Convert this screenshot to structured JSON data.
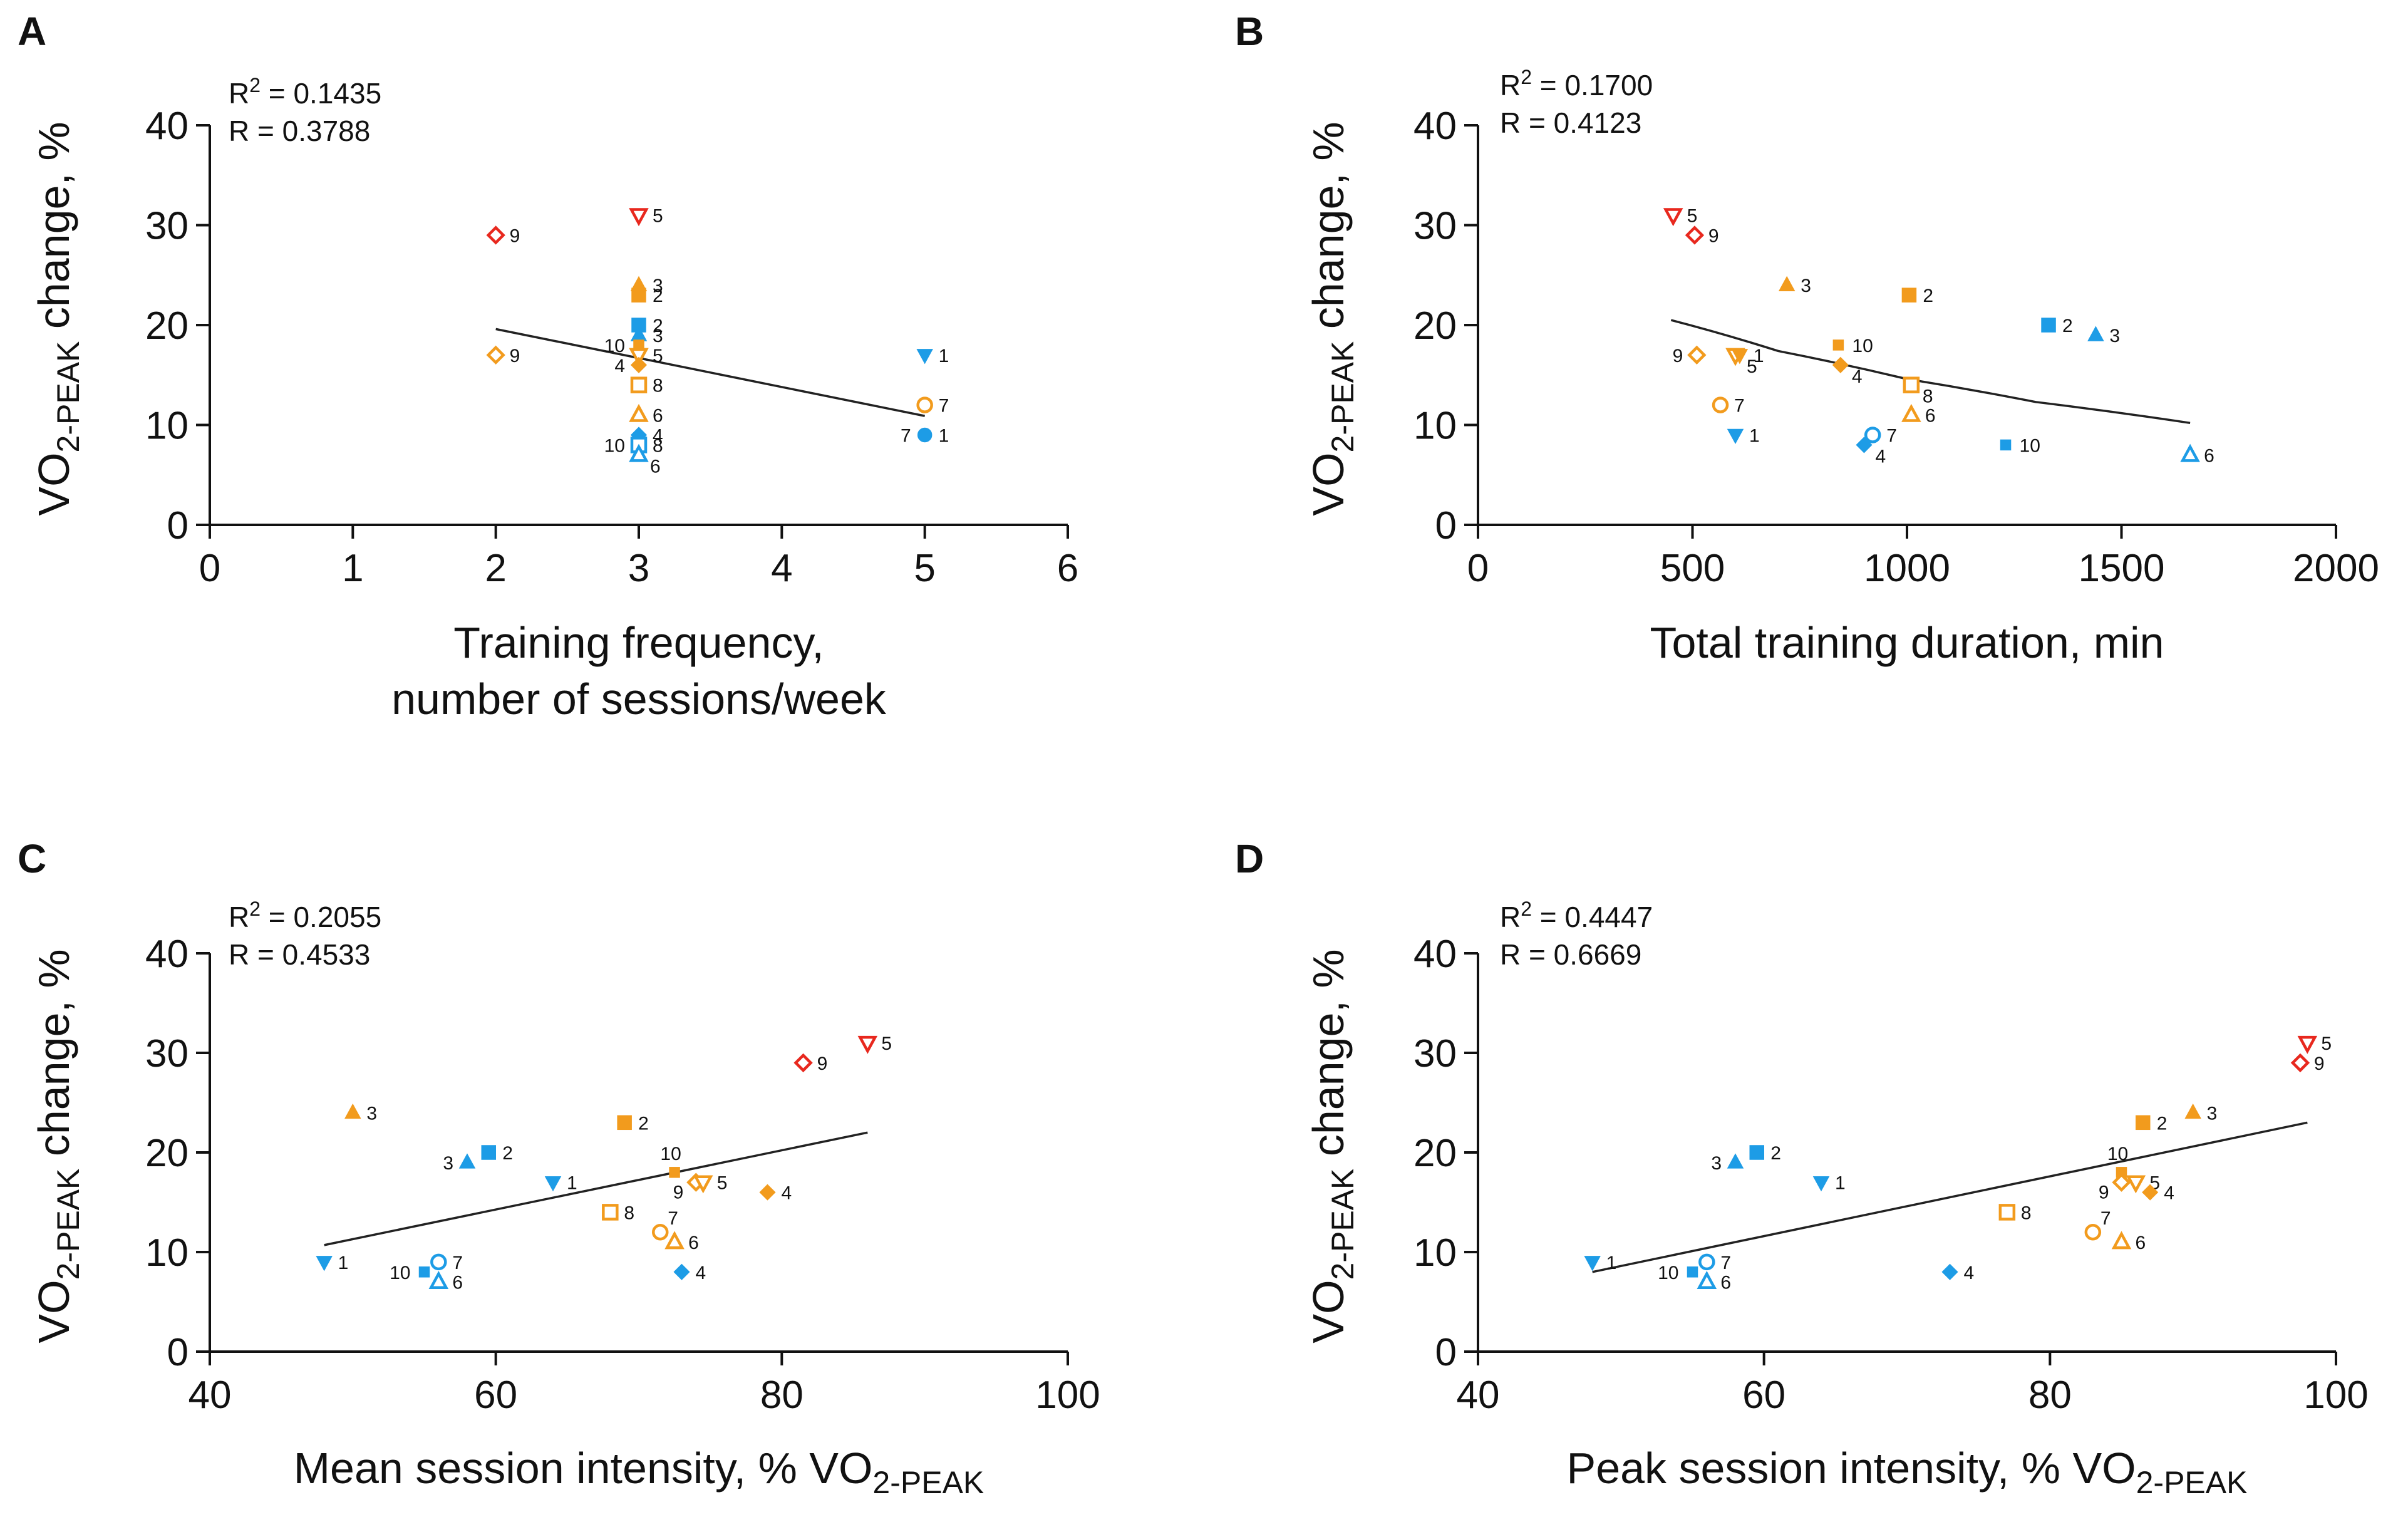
{
  "colors": {
    "orange": "#f29b1d",
    "blue": "#1d9ce6",
    "red": "#e8281e",
    "axis": "#111111"
  },
  "chart_data": [
    {
      "id": "A",
      "type": "scatter",
      "panel_label": "A",
      "xlabel_lines": [
        "Training frequency,",
        "number of sessions/week"
      ],
      "ylabel_main": "VO",
      "ylabel_sub": "2-PEAK",
      "ylabel_tail": " change, %",
      "xlim": [
        0,
        6
      ],
      "ylim": [
        0,
        40
      ],
      "xticks": [
        0,
        1,
        2,
        3,
        4,
        5,
        6
      ],
      "yticks": [
        0,
        10,
        20,
        30,
        40
      ],
      "stats": {
        "r2_prefix": "R",
        "r2_sup": "2",
        "r2_value": " = 0.1435",
        "r": "R = 0.3788"
      },
      "fit": {
        "kind": "linear",
        "x": [
          2,
          5
        ],
        "y": [
          19.6,
          10.9
        ]
      },
      "points": [
        {
          "x": 2,
          "y": 29,
          "label": "9",
          "shape": "diamond",
          "fill": "open",
          "color": "red",
          "label_side": "right"
        },
        {
          "x": 2,
          "y": 17,
          "label": "9",
          "shape": "diamond",
          "fill": "open",
          "color": "orange",
          "label_side": "right"
        },
        {
          "x": 3,
          "y": 31,
          "label": "5",
          "shape": "tri-down",
          "fill": "open",
          "color": "red",
          "label_side": "right"
        },
        {
          "x": 3,
          "y": 24,
          "label": "3",
          "shape": "tri-up",
          "fill": "filled",
          "color": "orange",
          "label_side": "right"
        },
        {
          "x": 3,
          "y": 23,
          "label": "2",
          "shape": "square",
          "fill": "filled",
          "color": "orange",
          "label_side": "right"
        },
        {
          "x": 3,
          "y": 20,
          "label": "2",
          "shape": "square",
          "fill": "filled",
          "color": "blue",
          "label_side": "right"
        },
        {
          "x": 3,
          "y": 19,
          "label": "3",
          "shape": "tri-up",
          "fill": "filled",
          "color": "blue",
          "label_side": "right"
        },
        {
          "x": 3,
          "y": 18,
          "label": "10",
          "shape": "square-small",
          "fill": "filled",
          "color": "orange",
          "label_side": "left"
        },
        {
          "x": 3,
          "y": 17,
          "label": "5",
          "shape": "tri-down",
          "fill": "open",
          "color": "orange",
          "label_side": "right"
        },
        {
          "x": 3,
          "y": 16,
          "label": "4",
          "shape": "diamond",
          "fill": "filled",
          "color": "orange",
          "label_side": "left"
        },
        {
          "x": 3,
          "y": 14,
          "label": "8",
          "shape": "square",
          "fill": "open",
          "color": "orange",
          "label_side": "right"
        },
        {
          "x": 3,
          "y": 11,
          "label": "6",
          "shape": "tri-up",
          "fill": "open",
          "color": "orange",
          "label_side": "right"
        },
        {
          "x": 3,
          "y": 9,
          "label": "4",
          "shape": "diamond",
          "fill": "filled",
          "color": "blue",
          "label_side": "right"
        },
        {
          "x": 3,
          "y": 8,
          "label": "10",
          "shape": "square",
          "fill": "filled",
          "color": "blue",
          "label_side": "left"
        },
        {
          "x": 3,
          "y": 8,
          "label": "8",
          "shape": "square",
          "fill": "open",
          "color": "blue",
          "label_side": "right"
        },
        {
          "x": 3,
          "y": 7,
          "label": "6",
          "shape": "tri-up",
          "fill": "open",
          "color": "blue",
          "label_side": "right-below"
        },
        {
          "x": 5,
          "y": 17,
          "label": "1",
          "shape": "tri-down",
          "fill": "filled",
          "color": "blue",
          "label_side": "right"
        },
        {
          "x": 5,
          "y": 12,
          "label": "7",
          "shape": "circle",
          "fill": "open",
          "color": "orange",
          "label_side": "right"
        },
        {
          "x": 5,
          "y": 9,
          "label": "1",
          "shape": "circle",
          "fill": "filled",
          "color": "blue",
          "label_side": "right"
        },
        {
          "x": 5,
          "y": 9,
          "label": "7",
          "shape": "none",
          "fill": "open",
          "color": "blue",
          "label_side": "left"
        }
      ]
    },
    {
      "id": "B",
      "type": "scatter",
      "panel_label": "B",
      "xlabel_lines": [
        "Total training duration, min"
      ],
      "ylabel_main": "VO",
      "ylabel_sub": "2-PEAK",
      "ylabel_tail": " change, %",
      "xlim": [
        0,
        2000
      ],
      "ylim": [
        0,
        40
      ],
      "xticks": [
        0,
        500,
        1000,
        1500,
        2000
      ],
      "yticks": [
        0,
        10,
        20,
        30,
        40
      ],
      "stats": {
        "r2_prefix": "R",
        "r2_sup": "2",
        "r2_value": " = 0.1700",
        "r": "R = 0.4123"
      },
      "fit": {
        "kind": "curve",
        "x": [
          450,
          700,
          1000,
          1300,
          1660
        ],
        "y": [
          20.5,
          17.4,
          14.6,
          12.3,
          10.2
        ]
      },
      "points": [
        {
          "x": 455,
          "y": 31,
          "label": "5",
          "shape": "tri-down",
          "fill": "open",
          "color": "red",
          "label_side": "right"
        },
        {
          "x": 505,
          "y": 29,
          "label": "9",
          "shape": "diamond",
          "fill": "open",
          "color": "red",
          "label_side": "right"
        },
        {
          "x": 720,
          "y": 24,
          "label": "3",
          "shape": "tri-up",
          "fill": "filled",
          "color": "orange",
          "label_side": "right"
        },
        {
          "x": 1005,
          "y": 23,
          "label": "2",
          "shape": "square",
          "fill": "filled",
          "color": "orange",
          "label_side": "right"
        },
        {
          "x": 1330,
          "y": 20,
          "label": "2",
          "shape": "square",
          "fill": "filled",
          "color": "blue",
          "label_side": "right"
        },
        {
          "x": 1440,
          "y": 19,
          "label": "3",
          "shape": "tri-up",
          "fill": "filled",
          "color": "blue",
          "label_side": "right"
        },
        {
          "x": 840,
          "y": 18,
          "label": "10",
          "shape": "square-small",
          "fill": "filled",
          "color": "orange",
          "label_side": "right"
        },
        {
          "x": 510,
          "y": 17,
          "label": "9",
          "shape": "diamond",
          "fill": "open",
          "color": "orange",
          "label_side": "left"
        },
        {
          "x": 600,
          "y": 17,
          "label": "5",
          "shape": "tri-down",
          "fill": "open",
          "color": "orange",
          "label_side": "right-below"
        },
        {
          "x": 610,
          "y": 17,
          "label": "1",
          "shape": "tri-down",
          "fill": "filled",
          "color": "orange",
          "label_side": "right"
        },
        {
          "x": 845,
          "y": 16,
          "label": "4",
          "shape": "diamond",
          "fill": "filled",
          "color": "orange",
          "label_side": "right-below"
        },
        {
          "x": 1010,
          "y": 14,
          "label": "8",
          "shape": "square",
          "fill": "open",
          "color": "orange",
          "label_side": "right-below"
        },
        {
          "x": 565,
          "y": 12,
          "label": "7",
          "shape": "circle",
          "fill": "open",
          "color": "orange",
          "label_side": "right"
        },
        {
          "x": 1010,
          "y": 11,
          "label": "6",
          "shape": "tri-up",
          "fill": "open",
          "color": "orange",
          "label_side": "right"
        },
        {
          "x": 600,
          "y": 9,
          "label": "1",
          "shape": "tri-down",
          "fill": "filled",
          "color": "blue",
          "label_side": "right"
        },
        {
          "x": 920,
          "y": 9,
          "label": "7",
          "shape": "circle",
          "fill": "open",
          "color": "blue",
          "label_side": "right"
        },
        {
          "x": 900,
          "y": 8,
          "label": "4",
          "shape": "diamond",
          "fill": "filled",
          "color": "blue",
          "label_side": "right-below"
        },
        {
          "x": 1230,
          "y": 8,
          "label": "10",
          "shape": "square-small",
          "fill": "filled",
          "color": "blue",
          "label_side": "right"
        },
        {
          "x": 1660,
          "y": 7,
          "label": "6",
          "shape": "tri-up",
          "fill": "open",
          "color": "blue",
          "label_side": "right"
        }
      ]
    },
    {
      "id": "C",
      "type": "scatter",
      "panel_label": "C",
      "xlabel_lines": [
        "Mean session intensity, % VO"
      ],
      "xlabel_sub": "2-PEAK",
      "ylabel_main": "VO",
      "ylabel_sub": "2-PEAK",
      "ylabel_tail": " change, %",
      "xlim": [
        40,
        100
      ],
      "ylim": [
        0,
        40
      ],
      "xticks": [
        40,
        60,
        80,
        100
      ],
      "yticks": [
        0,
        10,
        20,
        30,
        40
      ],
      "stats": {
        "r2_prefix": "R",
        "r2_sup": "2",
        "r2_value": " = 0.2055",
        "r": "R = 0.4533"
      },
      "fit": {
        "kind": "linear",
        "x": [
          48,
          86
        ],
        "y": [
          10.7,
          22.0
        ]
      },
      "points": [
        {
          "x": 86,
          "y": 31,
          "label": "5",
          "shape": "tri-down",
          "fill": "open",
          "color": "red",
          "label_side": "right"
        },
        {
          "x": 81.5,
          "y": 29,
          "label": "9",
          "shape": "diamond",
          "fill": "open",
          "color": "red",
          "label_side": "right"
        },
        {
          "x": 50,
          "y": 24,
          "label": "3",
          "shape": "tri-up",
          "fill": "filled",
          "color": "orange",
          "label_side": "right"
        },
        {
          "x": 69,
          "y": 23,
          "label": "2",
          "shape": "square",
          "fill": "filled",
          "color": "orange",
          "label_side": "right"
        },
        {
          "x": 59.5,
          "y": 20,
          "label": "2",
          "shape": "square",
          "fill": "filled",
          "color": "blue",
          "label_side": "right"
        },
        {
          "x": 58,
          "y": 19,
          "label": "3",
          "shape": "tri-up",
          "fill": "filled",
          "color": "blue",
          "label_side": "left"
        },
        {
          "x": 72.5,
          "y": 18,
          "label": "10",
          "shape": "square-small",
          "fill": "filled",
          "color": "orange",
          "label_side": "above"
        },
        {
          "x": 64,
          "y": 17,
          "label": "1",
          "shape": "tri-down",
          "fill": "filled",
          "color": "blue",
          "label_side": "right"
        },
        {
          "x": 74,
          "y": 17,
          "label": "9",
          "shape": "diamond",
          "fill": "open",
          "color": "orange",
          "label_side": "left-below"
        },
        {
          "x": 74.5,
          "y": 17,
          "label": "5",
          "shape": "tri-down",
          "fill": "open",
          "color": "orange",
          "label_side": "right"
        },
        {
          "x": 79,
          "y": 16,
          "label": "4",
          "shape": "diamond",
          "fill": "filled",
          "color": "orange",
          "label_side": "right"
        },
        {
          "x": 68,
          "y": 14,
          "label": "8",
          "shape": "square",
          "fill": "open",
          "color": "orange",
          "label_side": "right"
        },
        {
          "x": 71.5,
          "y": 12,
          "label": "7",
          "shape": "circle",
          "fill": "open",
          "color": "orange",
          "label_side": "right-above"
        },
        {
          "x": 72.5,
          "y": 11,
          "label": "6",
          "shape": "tri-up",
          "fill": "open",
          "color": "orange",
          "label_side": "right"
        },
        {
          "x": 48,
          "y": 9,
          "label": "1",
          "shape": "tri-down",
          "fill": "filled",
          "color": "blue",
          "label_side": "right"
        },
        {
          "x": 56,
          "y": 9,
          "label": "7",
          "shape": "circle",
          "fill": "open",
          "color": "blue",
          "label_side": "right"
        },
        {
          "x": 55,
          "y": 8,
          "label": "10",
          "shape": "square-small",
          "fill": "filled",
          "color": "blue",
          "label_side": "left"
        },
        {
          "x": 73,
          "y": 8,
          "label": "4",
          "shape": "diamond",
          "fill": "filled",
          "color": "blue",
          "label_side": "right"
        },
        {
          "x": 56,
          "y": 7,
          "label": "6",
          "shape": "tri-up",
          "fill": "open",
          "color": "blue",
          "label_side": "right"
        }
      ]
    },
    {
      "id": "D",
      "type": "scatter",
      "panel_label": "D",
      "xlabel_lines": [
        "Peak session intensity, % VO"
      ],
      "xlabel_sub": "2-PEAK",
      "ylabel_main": "VO",
      "ylabel_sub": "2-PEAK",
      "ylabel_tail": " change, %",
      "xlim": [
        40,
        100
      ],
      "ylim": [
        0,
        40
      ],
      "xticks": [
        40,
        60,
        80,
        100
      ],
      "yticks": [
        0,
        10,
        20,
        30,
        40
      ],
      "stats": {
        "r2_prefix": "R",
        "r2_sup": "2",
        "r2_value": " = 0.4447",
        "r": "R = 0.6669"
      },
      "fit": {
        "kind": "linear",
        "x": [
          48,
          98
        ],
        "y": [
          8.0,
          23.0
        ]
      },
      "points": [
        {
          "x": 98,
          "y": 31,
          "label": "5",
          "shape": "tri-down",
          "fill": "open",
          "color": "red",
          "label_side": "right"
        },
        {
          "x": 97.5,
          "y": 29,
          "label": "9",
          "shape": "diamond",
          "fill": "open",
          "color": "red",
          "label_side": "right"
        },
        {
          "x": 90,
          "y": 24,
          "label": "3",
          "shape": "tri-up",
          "fill": "filled",
          "color": "orange",
          "label_side": "right"
        },
        {
          "x": 86.5,
          "y": 23,
          "label": "2",
          "shape": "square",
          "fill": "filled",
          "color": "orange",
          "label_side": "right"
        },
        {
          "x": 59.5,
          "y": 20,
          "label": "2",
          "shape": "square",
          "fill": "filled",
          "color": "blue",
          "label_side": "right"
        },
        {
          "x": 58,
          "y": 19,
          "label": "3",
          "shape": "tri-up",
          "fill": "filled",
          "color": "blue",
          "label_side": "left"
        },
        {
          "x": 85,
          "y": 18,
          "label": "10",
          "shape": "square-small",
          "fill": "filled",
          "color": "orange",
          "label_side": "above"
        },
        {
          "x": 64,
          "y": 17,
          "label": "1",
          "shape": "tri-down",
          "fill": "filled",
          "color": "blue",
          "label_side": "right"
        },
        {
          "x": 85,
          "y": 17,
          "label": "9",
          "shape": "diamond",
          "fill": "open",
          "color": "orange",
          "label_side": "left-below"
        },
        {
          "x": 86,
          "y": 17,
          "label": "5",
          "shape": "tri-down",
          "fill": "open",
          "color": "orange",
          "label_side": "right"
        },
        {
          "x": 87,
          "y": 16,
          "label": "4",
          "shape": "diamond",
          "fill": "filled",
          "color": "orange",
          "label_side": "right"
        },
        {
          "x": 77,
          "y": 14,
          "label": "8",
          "shape": "square",
          "fill": "open",
          "color": "orange",
          "label_side": "right"
        },
        {
          "x": 83,
          "y": 12,
          "label": "7",
          "shape": "circle",
          "fill": "open",
          "color": "orange",
          "label_side": "right-above"
        },
        {
          "x": 85,
          "y": 11,
          "label": "6",
          "shape": "tri-up",
          "fill": "open",
          "color": "orange",
          "label_side": "right"
        },
        {
          "x": 48,
          "y": 9,
          "label": "1",
          "shape": "tri-down",
          "fill": "filled",
          "color": "blue",
          "label_side": "right"
        },
        {
          "x": 56,
          "y": 9,
          "label": "7",
          "shape": "circle",
          "fill": "open",
          "color": "blue",
          "label_side": "right"
        },
        {
          "x": 55,
          "y": 8,
          "label": "10",
          "shape": "square-small",
          "fill": "filled",
          "color": "blue",
          "label_side": "left"
        },
        {
          "x": 73,
          "y": 8,
          "label": "4",
          "shape": "diamond",
          "fill": "filled",
          "color": "blue",
          "label_side": "right"
        },
        {
          "x": 56,
          "y": 7,
          "label": "6",
          "shape": "tri-up",
          "fill": "open",
          "color": "blue",
          "label_side": "right"
        }
      ]
    }
  ]
}
